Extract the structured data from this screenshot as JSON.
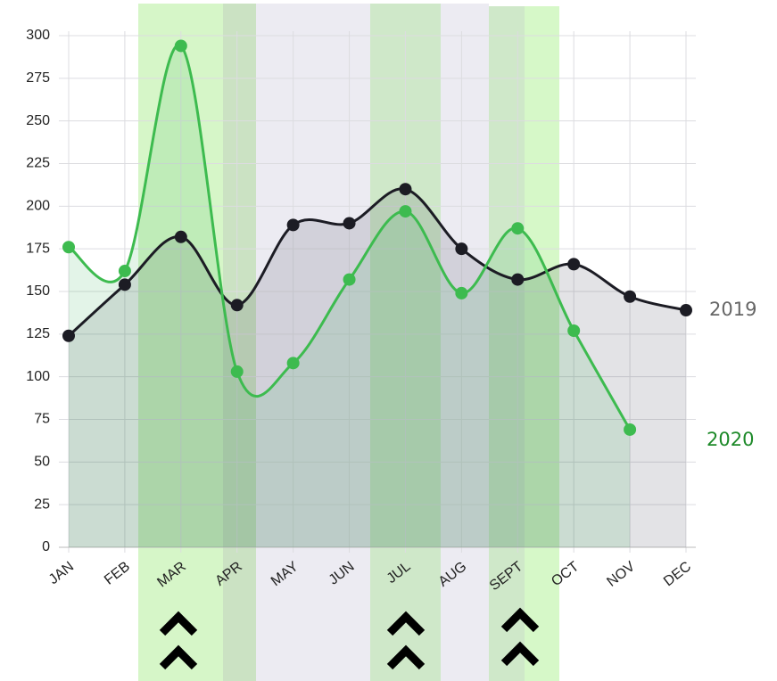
{
  "chart_data": {
    "type": "line",
    "categories": [
      "JAN",
      "FEB",
      "MAR",
      "APR",
      "MAY",
      "JUN",
      "JUL",
      "AUG",
      "SEPT",
      "OCT",
      "NOV",
      "DEC"
    ],
    "series": [
      {
        "name": "2019",
        "color": "#1c1c24",
        "values": [
          124,
          154,
          182,
          142,
          189,
          190,
          210,
          175,
          157,
          166,
          147,
          139
        ]
      },
      {
        "name": "2020",
        "color": "#3dbb4f",
        "values": [
          176,
          162,
          294,
          103,
          108,
          157,
          197,
          149,
          187,
          127,
          69,
          null
        ]
      }
    ],
    "ylim": [
      0,
      300
    ],
    "yticks": [
      0,
      25,
      50,
      75,
      100,
      125,
      150,
      175,
      200,
      225,
      250,
      275,
      300
    ],
    "grid": true
  }
}
